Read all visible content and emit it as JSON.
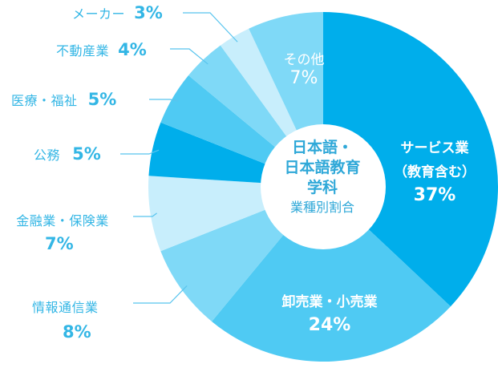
{
  "chart_data": {
    "type": "pie",
    "title": "日本語・日本語教育学科",
    "subtitle": "業種別割合",
    "center_lines": [
      "日本語・",
      "日本語教育",
      "学科"
    ],
    "slices": [
      {
        "label": "サービス業（教育含む）",
        "label_lines": [
          "サービス業",
          "（教育含む）"
        ],
        "pct_text": "37%",
        "value": 37,
        "color": "#00aeeb"
      },
      {
        "label": "卸売業・小売業",
        "label_lines": [
          "卸売業・小売業"
        ],
        "pct_text": "24%",
        "value": 24,
        "color": "#4fcaf3"
      },
      {
        "label": "情報通信業",
        "label_lines": [
          "情報通信業"
        ],
        "pct_text": "8%",
        "value": 8,
        "color": "#7fd9f7"
      },
      {
        "label": "金融業・保険業",
        "label_lines": [
          "金融業・保険業"
        ],
        "pct_text": "7%",
        "value": 7,
        "color": "#c8eefc"
      },
      {
        "label": "公務",
        "label_lines": [
          "公務"
        ],
        "pct_text": "5%",
        "value": 5,
        "color": "#00aeeb"
      },
      {
        "label": "医療・福祉",
        "label_lines": [
          "医療・福祉"
        ],
        "pct_text": "5%",
        "value": 5,
        "color": "#4fcaf3"
      },
      {
        "label": "不動産業",
        "label_lines": [
          "不動産業"
        ],
        "pct_text": "4%",
        "value": 4,
        "color": "#7fd9f7"
      },
      {
        "label": "メーカー",
        "label_lines": [
          "メーカー"
        ],
        "pct_text": "3%",
        "value": 3,
        "color": "#c8eefc"
      },
      {
        "label": "その他",
        "label_lines": [
          "その他"
        ],
        "pct_text": "7%",
        "value": 7,
        "color": "#7fd9f7"
      }
    ],
    "legend": "none",
    "leader_line_color": "#58c4ee"
  }
}
